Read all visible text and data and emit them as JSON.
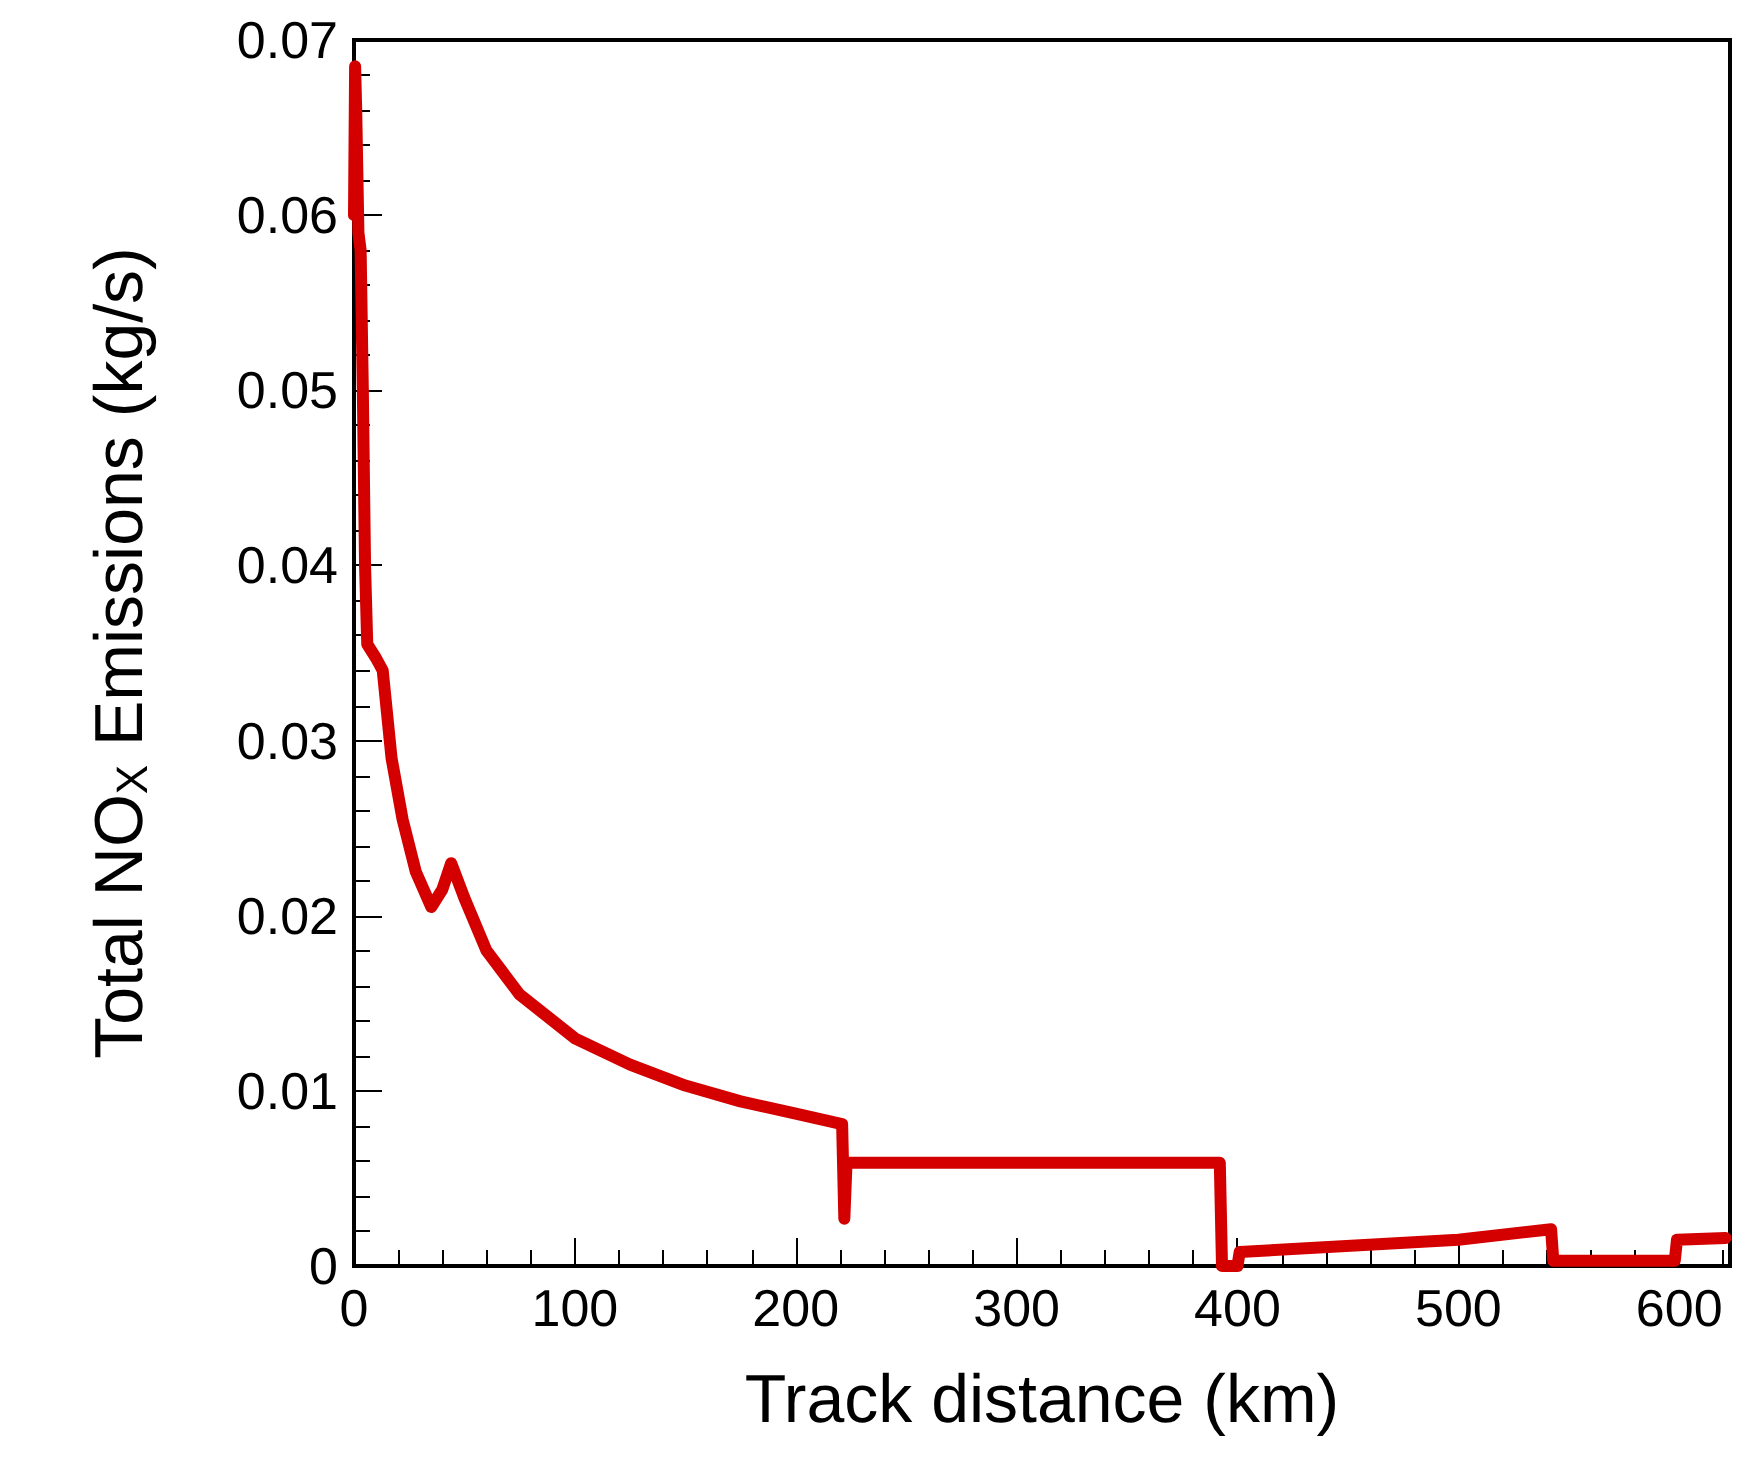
{
  "chart_data": {
    "type": "line",
    "xlabel": "Track distance (km)",
    "ylabel": "Total NO$_{X}$ Emissions (kg/s)",
    "xlim": [
      0,
      623
    ],
    "xticks": [
      0,
      100,
      200,
      300,
      400,
      500,
      600
    ],
    "ylim": [
      0,
      0.07
    ],
    "yticks": [
      0,
      0.01,
      0.02,
      0.03,
      0.04,
      0.05,
      0.06,
      0.07
    ],
    "grid": false,
    "marker": "none",
    "line_style": "solid",
    "series": [
      {
        "color": "#d40000",
        "x": [
          0,
          0.5,
          1,
          2,
          3,
          4,
          5,
          6,
          10,
          13,
          17,
          22,
          28,
          35,
          40,
          44,
          50,
          60,
          75,
          90,
          100,
          125,
          150,
          175,
          200,
          221,
          221.5,
          222,
          223,
          300,
          392,
          393,
          400,
          401,
          500,
          542,
          543,
          598,
          599,
          621
        ],
        "values": [
          0.06,
          0.0685,
          0.066,
          0.059,
          0.058,
          0.05,
          0.04,
          0.0355,
          0.0347,
          0.034,
          0.029,
          0.0255,
          0.0225,
          0.0205,
          0.0215,
          0.023,
          0.021,
          0.018,
          0.0155,
          0.014,
          0.013,
          0.0115,
          0.0103,
          0.0094,
          0.0087,
          0.0081,
          0.0081,
          0.0027,
          0.0059,
          0.0059,
          0.0059,
          0,
          0,
          0.0008,
          0.0015,
          0.0021,
          0.0003,
          0.0003,
          0.0015,
          0.0016
        ]
      }
    ]
  }
}
